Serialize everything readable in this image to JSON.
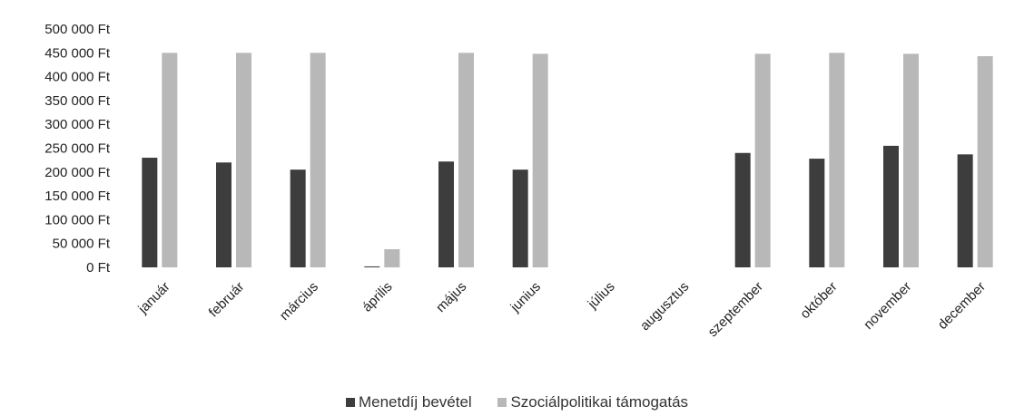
{
  "chart_data": {
    "type": "bar",
    "title": "",
    "xlabel": "",
    "ylabel": "",
    "ylim": [
      0,
      500000
    ],
    "ytick_step": 50000,
    "ytick_labels": [
      "0 Ft",
      "50 000 Ft",
      "100 000 Ft",
      "150 000 Ft",
      "200 000 Ft",
      "250 000 Ft",
      "300 000 Ft",
      "350 000 Ft",
      "400 000 Ft",
      "450 000 Ft",
      "500 000 Ft"
    ],
    "categories": [
      "január",
      "február",
      "március",
      "április",
      "május",
      "junius",
      "július",
      "augusztus",
      "szeptember",
      "október",
      "november",
      "december"
    ],
    "series": [
      {
        "name": "Menetdíj bevétel",
        "color": "#3d3d3d",
        "values": [
          230000,
          220000,
          205000,
          2000,
          222000,
          205000,
          0,
          0,
          240000,
          228000,
          255000,
          237000
        ]
      },
      {
        "name": "Szociálpolitikai támogatás",
        "color": "#b8b8b8",
        "values": [
          450000,
          450000,
          450000,
          38000,
          450000,
          448000,
          0,
          0,
          448000,
          450000,
          448000,
          443000
        ]
      }
    ],
    "grid": false,
    "legend": "bottom"
  }
}
